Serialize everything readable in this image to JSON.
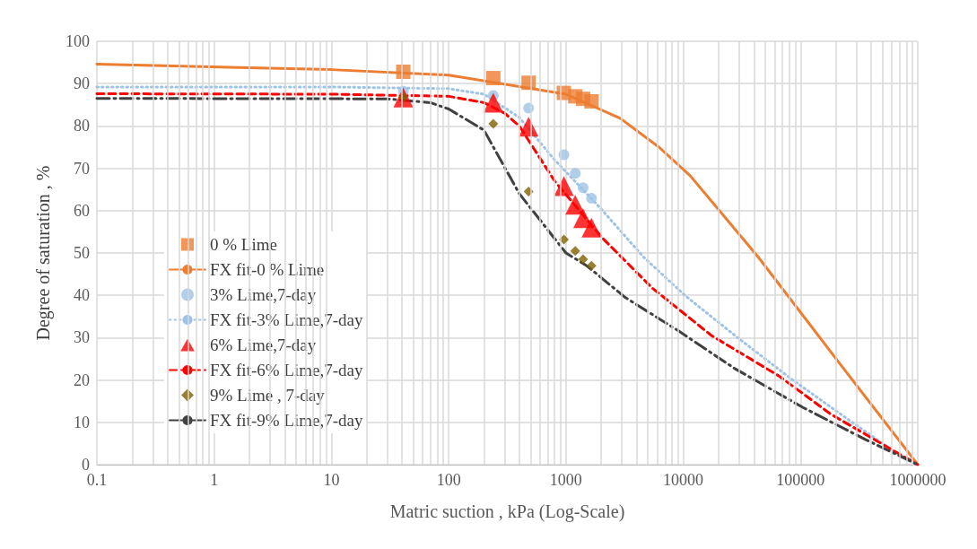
{
  "chart_data": {
    "type": "scatter",
    "xlabel": "Matric suction , kPa (Log-Scale)",
    "ylabel": "Degree of saturation , %",
    "log": "x",
    "grid": true,
    "legend": "left",
    "xlim": [
      0.1,
      1000000
    ],
    "xticks": [
      0.1,
      1,
      10,
      100,
      1000,
      10000,
      100000,
      1000000
    ],
    "ylim": [
      0,
      100
    ],
    "yticks": [
      0,
      10,
      20,
      30,
      40,
      50,
      60,
      70,
      80,
      90,
      100
    ],
    "series": [
      {
        "name": "0 % Lime",
        "marker": "square",
        "color": "#ed7d31",
        "x": [
          41,
          240,
          480,
          960,
          1200,
          1400,
          1650
        ],
        "values": [
          92.8,
          91.3,
          90.2,
          87.8,
          87,
          86.4,
          85.8
        ]
      },
      {
        "name": "FX fit-0 % Lime",
        "type": "line",
        "marker": "none",
        "line_style": "solid",
        "color": "#ed7d31",
        "x": [
          0.1,
          10,
          100,
          1000,
          2900,
          6200,
          11500,
          43700,
          209000,
          1000000
        ],
        "values": [
          94.6,
          93.3,
          92,
          87.5,
          81.8,
          75,
          68.2,
          49,
          24.4,
          0
        ]
      },
      {
        "name": "3% Lime,7-day",
        "marker": "circle",
        "color": "#9dc3e6",
        "x": [
          41,
          240,
          480,
          960,
          1200,
          1400,
          1650
        ],
        "values": [
          88.2,
          87.2,
          84.2,
          73.2,
          68.8,
          65.4,
          62.9
        ]
      },
      {
        "name": "FX fit-3% Lime,7-day",
        "type": "line",
        "marker": "none",
        "line_style": "dotted",
        "color": "#9dc3e6",
        "x": [
          0.1,
          10,
          100,
          200,
          400,
          800,
          1950,
          4600,
          10500,
          29400,
          83000,
          245000,
          660000,
          1000000
        ],
        "values": [
          89.2,
          89.2,
          88.8,
          87.5,
          82,
          72,
          60.7,
          49,
          39.8,
          29.9,
          20.3,
          11,
          2.7,
          0
        ]
      },
      {
        "name": "6% Lime,7-day",
        "marker": "triangle",
        "color": "#ff0000",
        "x": [
          41,
          240,
          480,
          960,
          1200,
          1400,
          1650
        ],
        "values": [
          86.7,
          85.5,
          79.8,
          65.8,
          61.4,
          58.2,
          56
        ]
      },
      {
        "name": "FX fit-6% Lime,7-day",
        "type": "line",
        "marker": "none",
        "line_style": "dashed",
        "color": "#ff0000",
        "x": [
          0.1,
          10,
          100,
          200,
          300,
          400,
          800,
          2050,
          5500,
          17400,
          65000,
          182000,
          510000,
          1000000
        ],
        "values": [
          87.6,
          87.5,
          87,
          85.5,
          83,
          80,
          67,
          53.5,
          41.6,
          30.5,
          21,
          11.9,
          4.7,
          0
        ]
      },
      {
        "name": "9% Lime , 7-day",
        "marker": "diamond",
        "color": "#7f6000",
        "x": [
          41,
          240,
          480,
          960,
          1200,
          1400,
          1650
        ],
        "values": [
          86.8,
          80.5,
          64.5,
          53.2,
          50.5,
          48.5,
          47
        ]
      },
      {
        "name": "FX fit-9% Lime,7-day",
        "type": "line",
        "marker": "none",
        "line_style": "dashdot",
        "color": "#404040",
        "x": [
          0.1,
          30,
          70,
          100,
          200,
          400,
          1000,
          1500,
          3200,
          9100,
          27500,
          105000,
          360000,
          1000000
        ],
        "values": [
          86.5,
          86.4,
          85.5,
          84,
          79,
          64,
          50,
          47,
          39.5,
          31.6,
          22.7,
          13.5,
          5.9,
          0
        ]
      }
    ]
  }
}
